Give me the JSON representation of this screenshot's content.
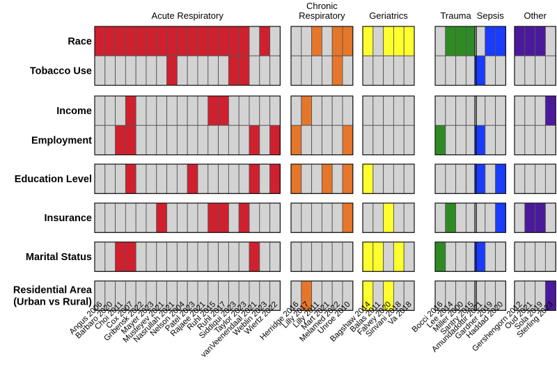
{
  "colors": {
    "empty": "#d3d3d3",
    "Acute Respiratory": "#d0202e",
    "Chronic Respiratory": "#e6762a",
    "Geriatrics": "#ffff2e",
    "Trauma": "#2e8b24",
    "Sepsis": "#1a3cff",
    "Other": "#4b1a9c"
  },
  "chart_data": {
    "type": "heatmap",
    "title": "",
    "rows": [
      "Race",
      "Tobacco Use",
      "Income",
      "Employment",
      "Education Level",
      "Insurance",
      "Marital Status",
      "Residential Area\n(Urban vs Rural)"
    ],
    "groups": [
      {
        "name": "Acute Respiratory",
        "studies": [
          "Angus 2006",
          "Barbaro 2020",
          "Choi 2011",
          "Cox 2007",
          "Gribensk 2022",
          "Mayer 2023",
          "Musteyev 2021",
          "Nasrullah 2021",
          "Nelson 2004",
          "Patel 2023",
          "Rajaee 2021",
          "Ruhl 2015",
          "Ruhl 2017",
          "Siddiqui 2023",
          "Taylor 2023",
          "vanVeenendaal 2021",
          "Weblin 2023",
          "Wiertz 2022"
        ],
        "values": [
          [
            1,
            1,
            1,
            1,
            1,
            1,
            1,
            1,
            1,
            1,
            1,
            1,
            1,
            1,
            1,
            0,
            1,
            0
          ],
          [
            0,
            0,
            0,
            0,
            0,
            0,
            0,
            1,
            0,
            0,
            0,
            0,
            0,
            1,
            1,
            0,
            0,
            0
          ],
          [
            0,
            0,
            0,
            1,
            0,
            0,
            0,
            0,
            0,
            0,
            0,
            1,
            1,
            0,
            0,
            0,
            0,
            0
          ],
          [
            0,
            0,
            1,
            1,
            0,
            0,
            0,
            0,
            0,
            0,
            0,
            0,
            0,
            0,
            0,
            1,
            0,
            1
          ],
          [
            0,
            0,
            0,
            1,
            0,
            0,
            0,
            0,
            0,
            1,
            0,
            0,
            0,
            0,
            0,
            1,
            0,
            1
          ],
          [
            0,
            0,
            0,
            0,
            0,
            0,
            1,
            0,
            0,
            0,
            0,
            1,
            1,
            0,
            1,
            0,
            0,
            0
          ],
          [
            0,
            0,
            1,
            1,
            0,
            0,
            0,
            0,
            0,
            0,
            0,
            0,
            0,
            0,
            0,
            1,
            0,
            0
          ],
          [
            0,
            0,
            0,
            0,
            0,
            0,
            0,
            0,
            0,
            0,
            0,
            0,
            0,
            0,
            0,
            0,
            0,
            0
          ]
        ]
      },
      {
        "name": "Chronic\nRespiratory",
        "studies": [
          "Herridge 2016",
          "Lilly 2017",
          "Lilly 2011",
          "Mart 2021",
          "Melamed 2022",
          "Unroe 2010"
        ],
        "values": [
          [
            0,
            0,
            1,
            0,
            1,
            1
          ],
          [
            0,
            0,
            0,
            0,
            1,
            0
          ],
          [
            0,
            1,
            0,
            0,
            0,
            0
          ],
          [
            1,
            0,
            0,
            0,
            0,
            1
          ],
          [
            1,
            0,
            0,
            1,
            0,
            1
          ],
          [
            0,
            0,
            0,
            0,
            0,
            1
          ],
          [
            0,
            0,
            0,
            0,
            0,
            0
          ],
          [
            0,
            1,
            0,
            0,
            0,
            0
          ]
        ]
      },
      {
        "name": "Geriatrics",
        "studies": [
          "Bagshaw 2014",
          "Balas 2011",
          "Falvey 2020",
          "Sinvani 2018",
          "Va 2018"
        ],
        "values": [
          [
            1,
            0,
            1,
            1,
            1
          ],
          [
            0,
            0,
            0,
            0,
            0
          ],
          [
            0,
            0,
            0,
            0,
            0
          ],
          [
            0,
            0,
            0,
            0,
            0
          ],
          [
            1,
            0,
            0,
            0,
            0
          ],
          [
            0,
            0,
            1,
            0,
            0
          ],
          [
            1,
            1,
            0,
            1,
            0
          ],
          [
            1,
            0,
            1,
            0,
            0
          ]
        ]
      },
      {
        "name": "Trauma",
        "studies": [
          "Bocci 2016",
          "Lee 2014",
          "Miller 2000",
          "Santry 2015"
        ],
        "values": [
          [
            0,
            1,
            1,
            1
          ],
          [
            0,
            0,
            0,
            0
          ],
          [
            0,
            0,
            0,
            0
          ],
          [
            1,
            0,
            0,
            0
          ],
          [
            0,
            0,
            0,
            0
          ],
          [
            0,
            1,
            0,
            0
          ],
          [
            1,
            0,
            0,
            0
          ],
          [
            0,
            0,
            0,
            0
          ]
        ]
      },
      {
        "name": "Sepsis",
        "studies": [
          "Amundadottir 2021",
          "Gardner 2019",
          "Haddad 2020"
        ],
        "values": [
          [
            0,
            1,
            1
          ],
          [
            1,
            0,
            0
          ],
          [
            0,
            0,
            0
          ],
          [
            1,
            0,
            0
          ],
          [
            1,
            0,
            1
          ],
          [
            0,
            0,
            1
          ],
          [
            1,
            0,
            0
          ],
          [
            0,
            0,
            0
          ]
        ]
      },
      {
        "name": "Other",
        "studies": [
          "Gershengorn 2012",
          "Oud 2021",
          "Sola 2019",
          "Sterling 2023"
        ],
        "values": [
          [
            1,
            1,
            1,
            0
          ],
          [
            0,
            0,
            0,
            0
          ],
          [
            0,
            0,
            0,
            1
          ],
          [
            0,
            0,
            0,
            0
          ],
          [
            0,
            0,
            0,
            0
          ],
          [
            0,
            1,
            1,
            0
          ],
          [
            0,
            0,
            0,
            0
          ],
          [
            0,
            0,
            0,
            1
          ]
        ]
      }
    ]
  }
}
